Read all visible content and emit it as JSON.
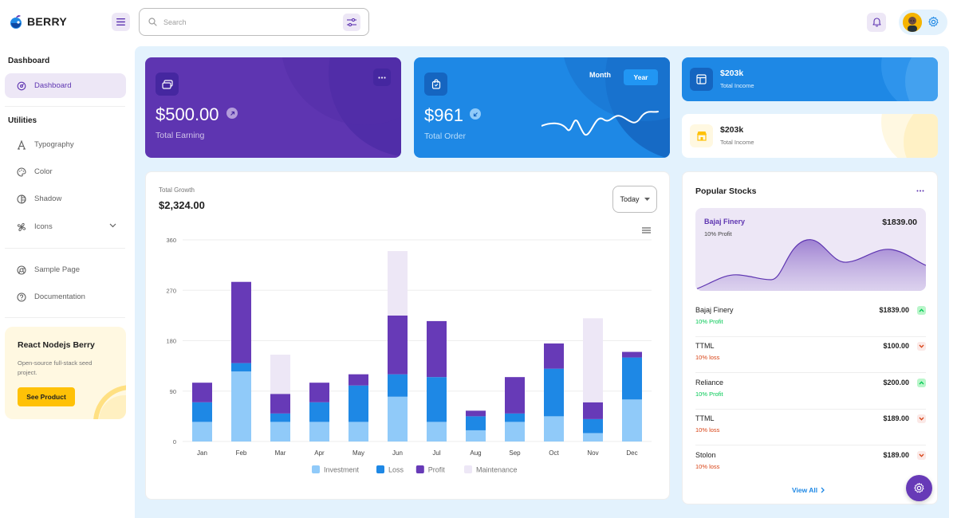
{
  "brand": {
    "name": "BERRY"
  },
  "header": {
    "search_placeholder": "Search"
  },
  "sidebar": {
    "captions": {
      "dashboard": "Dashboard",
      "utilities": "Utilities"
    },
    "items": [
      {
        "label": "Dashboard",
        "icon": "dashboard-icon",
        "active": true
      },
      {
        "label": "Typography",
        "icon": "typography-icon"
      },
      {
        "label": "Color",
        "icon": "palette-icon"
      },
      {
        "label": "Shadow",
        "icon": "shadow-icon"
      },
      {
        "label": "Icons",
        "icon": "windmill-icon"
      },
      {
        "label": "Sample Page",
        "icon": "brand-chrome-icon"
      },
      {
        "label": "Documentation",
        "icon": "help-icon"
      }
    ],
    "promo": {
      "title": "React Nodejs Berry",
      "subtitle": "Open-source full-stack seed project.",
      "button": "See Product"
    }
  },
  "cards": {
    "earning": {
      "value": "$500.00",
      "label": "Total Earning"
    },
    "order": {
      "value": "$961",
      "label": "Total Order",
      "toggle_month": "Month",
      "toggle_year": "Year"
    },
    "income_dark": {
      "value": "$203k",
      "label": "Total Income"
    },
    "income_light": {
      "value": "$203k",
      "label": "Total Income"
    }
  },
  "growth": {
    "caption": "Total Growth",
    "value": "$2,324.00",
    "period": "Today"
  },
  "chart_data": {
    "type": "bar",
    "stacked": true,
    "categories": [
      "Jan",
      "Feb",
      "Mar",
      "Apr",
      "May",
      "Jun",
      "Jul",
      "Aug",
      "Sep",
      "Oct",
      "Nov",
      "Dec"
    ],
    "series": [
      {
        "name": "Investment",
        "color": "#90caf9",
        "values": [
          35,
          125,
          35,
          35,
          35,
          80,
          35,
          20,
          35,
          45,
          15,
          75
        ]
      },
      {
        "name": "Loss",
        "color": "#1e88e5",
        "values": [
          35,
          15,
          15,
          35,
          65,
          40,
          80,
          25,
          15,
          85,
          25,
          75
        ]
      },
      {
        "name": "Profit",
        "color": "#673ab7",
        "values": [
          35,
          145,
          35,
          35,
          20,
          105,
          100,
          10,
          65,
          45,
          30,
          10
        ]
      },
      {
        "name": "Maintenance",
        "color": "#ede7f6",
        "values": [
          0,
          0,
          70,
          0,
          0,
          115,
          0,
          0,
          0,
          0,
          150,
          0
        ]
      }
    ],
    "ylim": [
      0,
      360
    ],
    "yticks": [
      "0",
      "90",
      "180",
      "270",
      "360"
    ],
    "grid": true,
    "legend_position": "bottom"
  },
  "stocks": {
    "title": "Popular Stocks",
    "featured": {
      "name": "Bajaj Finery",
      "value": "$1839.00",
      "status": "10% Profit"
    },
    "rows": [
      {
        "name": "Bajaj Finery",
        "value": "$1839.00",
        "status": "10% Profit",
        "trend": "up"
      },
      {
        "name": "TTML",
        "value": "$100.00",
        "status": "10% loss",
        "trend": "down"
      },
      {
        "name": "Reliance",
        "value": "$200.00",
        "status": "10% Profit",
        "trend": "up"
      },
      {
        "name": "TTML",
        "value": "$189.00",
        "status": "10% loss",
        "trend": "down"
      },
      {
        "name": "Stolon",
        "value": "$189.00",
        "status": "10% loss",
        "trend": "down"
      }
    ],
    "view_all": "View All"
  },
  "colors": {
    "primary": "#5e35b1",
    "secondary": "#1e88e5",
    "profit": "#00c853",
    "loss": "#d84315",
    "warning": "#ffc107"
  }
}
